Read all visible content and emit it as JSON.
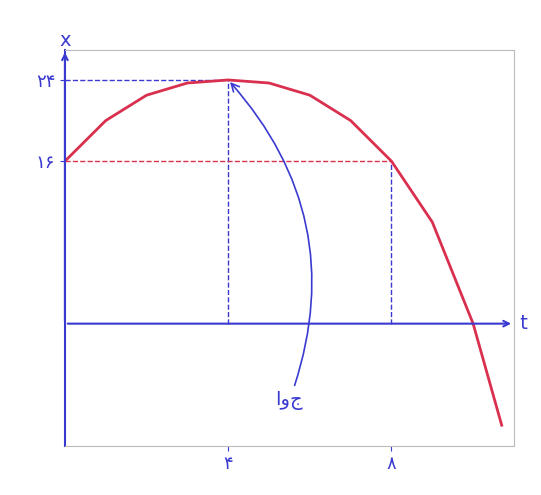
{
  "chart_data": {
    "type": "line",
    "x_label": "t",
    "y_label": "x",
    "x": [
      0,
      1,
      2,
      3,
      4,
      5,
      6,
      7,
      8,
      9,
      10,
      10.7
    ],
    "values": [
      16,
      20,
      22.5,
      23.7,
      24,
      23.7,
      22.5,
      20,
      16,
      10,
      0,
      -10
    ],
    "color": "#d9304f",
    "xlim": [
      0,
      11
    ],
    "ylim": [
      -12,
      27
    ],
    "xticks": [
      {
        "value": 4,
        "label": "۴"
      },
      {
        "value": 8,
        "label": "۸"
      }
    ],
    "yticks": [
      {
        "value": 16,
        "label": "۱۶"
      },
      {
        "value": 24,
        "label": "۲۴"
      }
    ],
    "annotations": [
      {
        "text": "اوج",
        "x": 4,
        "y": 24
      }
    ],
    "grid": false
  }
}
